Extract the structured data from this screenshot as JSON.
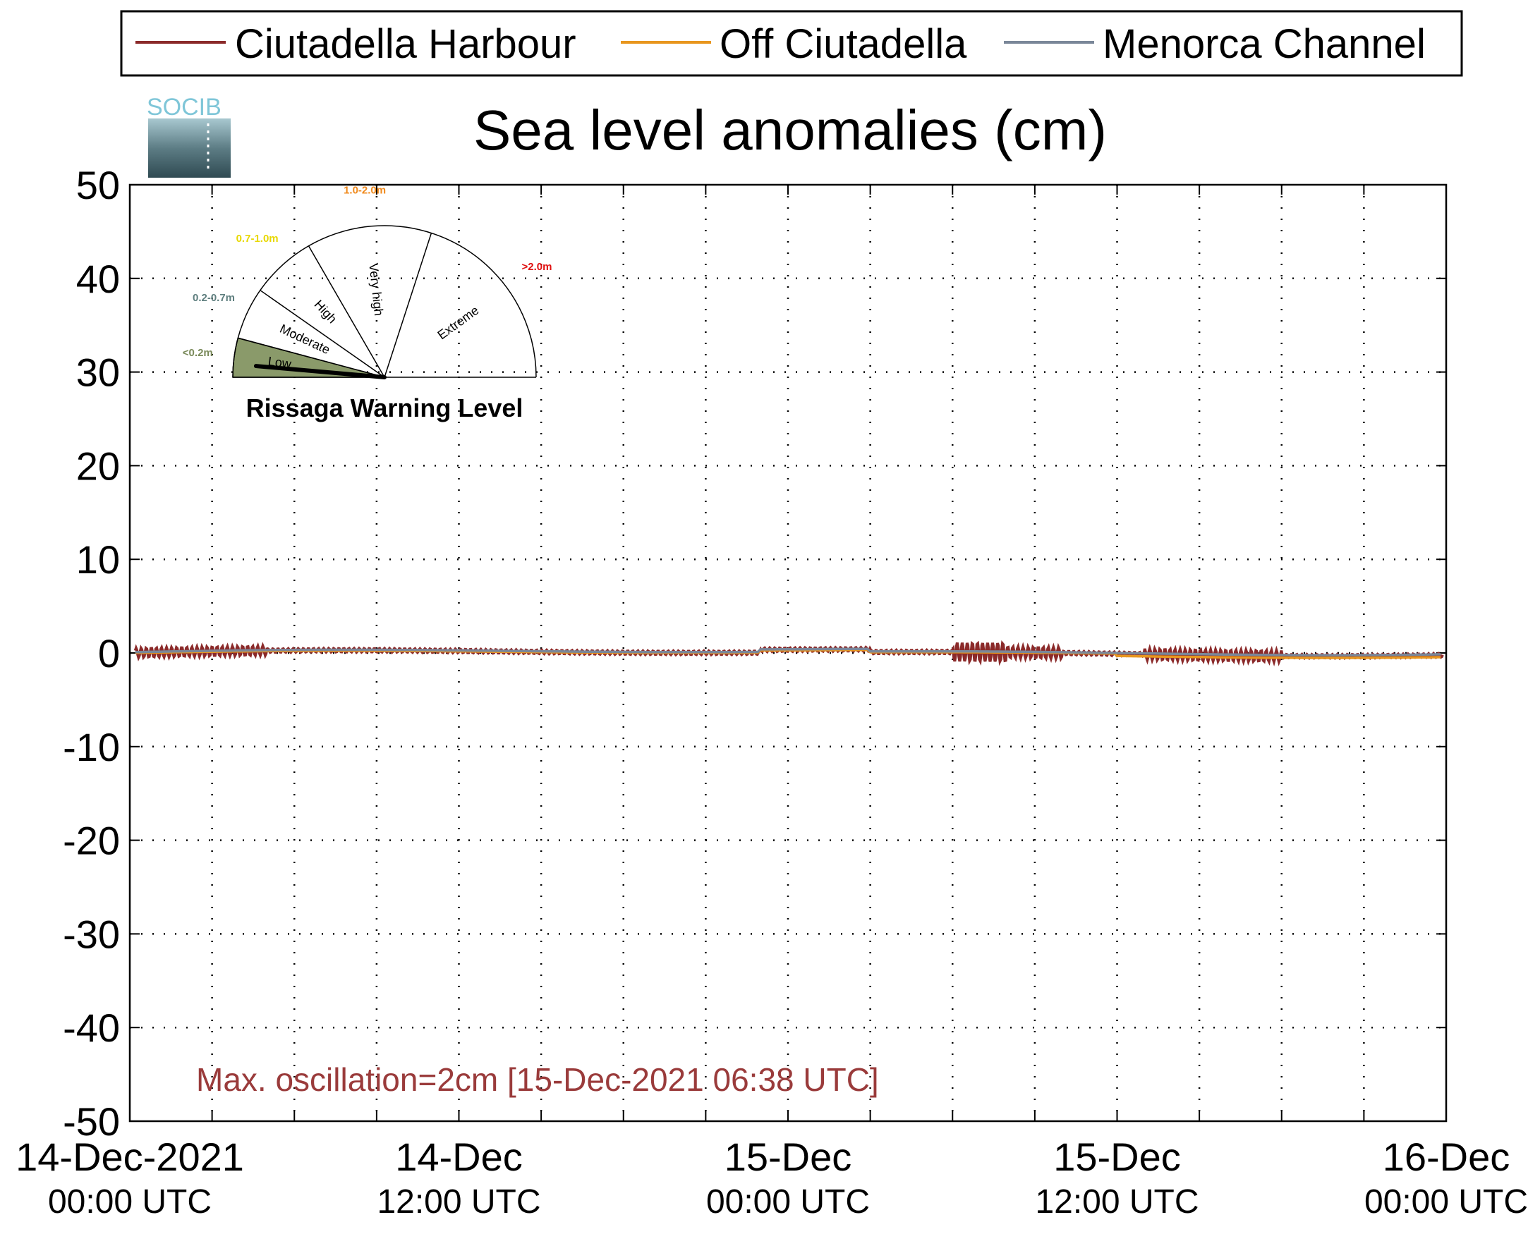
{
  "chart_data": {
    "type": "line",
    "title": "Sea level anomalies (cm)",
    "ylim": [
      -50,
      50
    ],
    "yticks": [
      50,
      40,
      30,
      20,
      10,
      0,
      -10,
      -20,
      -30,
      -40,
      -50
    ],
    "xlim_hours": [
      0,
      48
    ],
    "xticks": [
      {
        "hour": 0,
        "top": "14-Dec-2021",
        "bottom": "00:00 UTC"
      },
      {
        "hour": 12,
        "top": "14-Dec",
        "bottom": "12:00 UTC"
      },
      {
        "hour": 24,
        "top": "15-Dec",
        "bottom": "00:00 UTC"
      },
      {
        "hour": 36,
        "top": "15-Dec",
        "bottom": "12:00 UTC"
      },
      {
        "hour": 48,
        "top": "16-Dec",
        "bottom": "00:00 UTC"
      }
    ],
    "minor_tick_hours": [
      3,
      6,
      9,
      15,
      18,
      21,
      27,
      30,
      33,
      39,
      42,
      45
    ],
    "grid": true,
    "legend_position": "top",
    "series": [
      {
        "name": "Ciutadella Harbour",
        "color": "#8b2a2a"
      },
      {
        "name": "Off Ciutadella",
        "color": "#e8961e"
      },
      {
        "name": "Menorca Channel",
        "color": "#7a8799"
      }
    ],
    "annotation": "Max. oscillation=2cm [15-Dec-2021 06:38 UTC]",
    "annotation_color": "#9a3b3b"
  },
  "gauge": {
    "title": "Rissaga Warning Level",
    "levels": [
      {
        "label": "Low",
        "range": "<0.2m",
        "range_color": "#7a8a5a"
      },
      {
        "label": "Moderate",
        "range": "0.2-0.7m",
        "range_color": "#5f7f7f"
      },
      {
        "label": "High",
        "range": "0.7-1.0m",
        "range_color": "#e8d800"
      },
      {
        "label": "Very high",
        "range": "1.0-2.0m",
        "range_color": "#f08a1c"
      },
      {
        "label": "Extreme",
        "range": ">2.0m",
        "range_color": "#e01010"
      }
    ],
    "active_level": "Low",
    "active_color": "#8a9a6a"
  },
  "logo": {
    "text": "SOCIB"
  }
}
